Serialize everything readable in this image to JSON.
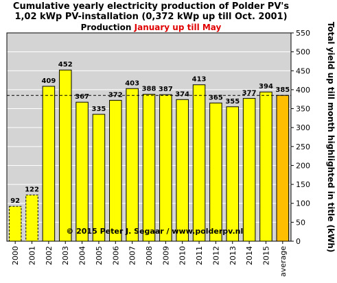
{
  "chart_data": {
    "type": "bar",
    "title_line1": "Cumulative yearly electricity production of Polder PV's",
    "title_line2": "1,02 kWp PV-installation  (0,372 kWp up till Oct. 2001)",
    "title_line3_prefix": "Production ",
    "title_line3_highlight": "January up till May",
    "ylabel": "Total yield up till month highlighted in title (kWh)",
    "xlabel": "",
    "ylim": [
      0,
      550
    ],
    "yticks": [
      0,
      50,
      100,
      150,
      200,
      250,
      300,
      350,
      400,
      450,
      500,
      550
    ],
    "categories": [
      "2000",
      "2001",
      "2002",
      "2003",
      "2004",
      "2005",
      "2006",
      "2007",
      "2008",
      "2009",
      "2010",
      "2011",
      "2012",
      "2013",
      "2014",
      "2015",
      "average"
    ],
    "values": [
      92,
      122,
      409,
      452,
      367,
      335,
      372,
      403,
      388,
      387,
      374,
      413,
      365,
      355,
      377,
      394,
      385
    ],
    "dashed_outline_categories": [
      "2000",
      "2001"
    ],
    "average_line_value": 385,
    "grid": true,
    "annotation": "© 2015 Peter J. Segaar / www.polderpv.nl",
    "colors": {
      "bar": "#ffff00",
      "average_bar": "#ffbf00",
      "plot_background": "#d4d4d4",
      "highlight_text": "#e00000"
    }
  }
}
